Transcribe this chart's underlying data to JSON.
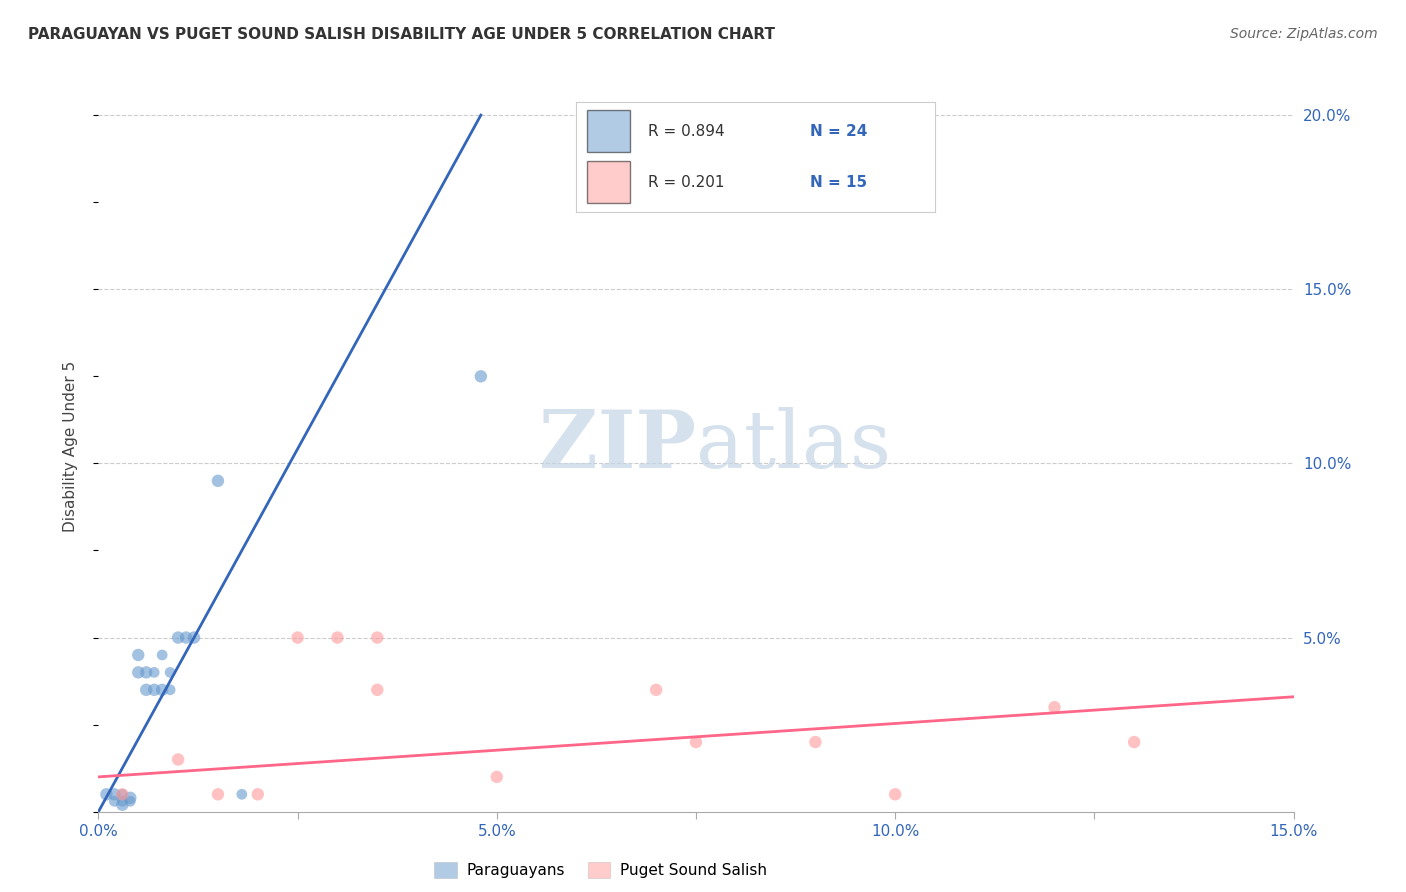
{
  "title": "PARAGUAYAN VS PUGET SOUND SALISH DISABILITY AGE UNDER 5 CORRELATION CHART",
  "source": "Source: ZipAtlas.com",
  "ylabel": "Disability Age Under 5",
  "xlim": [
    0.0,
    0.15
  ],
  "ylim": [
    0.0,
    0.21
  ],
  "xtick_positions": [
    0.0,
    0.025,
    0.05,
    0.075,
    0.1,
    0.125,
    0.15
  ],
  "xtick_labels": [
    "0.0%",
    "",
    "5.0%",
    "",
    "10.0%",
    "",
    "15.0%"
  ],
  "ytick_positions": [
    0.0,
    0.025,
    0.05,
    0.075,
    0.1,
    0.125,
    0.15,
    0.175,
    0.2
  ],
  "ytick_right_positions": [
    0.05,
    0.1,
    0.15,
    0.2
  ],
  "ytick_right_labels": [
    "5.0%",
    "10.0%",
    "15.0%",
    "20.0%"
  ],
  "legend_labels": [
    "Paraguayans",
    "Puget Sound Salish"
  ],
  "legend_r1": "R = 0.894",
  "legend_n1": "N = 24",
  "legend_r2": "R = 0.201",
  "legend_n2": "N = 15",
  "blue_color": "#6699CC",
  "pink_color": "#FF9999",
  "blue_line_color": "#3366BB",
  "pink_line_color": "#FF6688",
  "text_color": "#3366BB",
  "watermark_color": "#C5D5E8",
  "background_color": "#FFFFFF",
  "grid_color": "#CCCCCC",
  "paraguayan_x": [
    0.001,
    0.002,
    0.002,
    0.003,
    0.003,
    0.003,
    0.004,
    0.004,
    0.005,
    0.005,
    0.006,
    0.006,
    0.007,
    0.007,
    0.008,
    0.008,
    0.009,
    0.009,
    0.01,
    0.011,
    0.012,
    0.015,
    0.018,
    0.048
  ],
  "paraguayan_y": [
    0.005,
    0.005,
    0.003,
    0.005,
    0.003,
    0.002,
    0.004,
    0.003,
    0.04,
    0.045,
    0.035,
    0.04,
    0.035,
    0.04,
    0.045,
    0.035,
    0.04,
    0.035,
    0.05,
    0.05,
    0.05,
    0.095,
    0.005,
    0.125
  ],
  "paraguayan_sizes": [
    80,
    80,
    60,
    60,
    60,
    80,
    80,
    60,
    80,
    80,
    80,
    80,
    80,
    60,
    60,
    80,
    60,
    60,
    80,
    80,
    80,
    80,
    60,
    80
  ],
  "puget_x": [
    0.003,
    0.01,
    0.015,
    0.02,
    0.025,
    0.03,
    0.035,
    0.035,
    0.05,
    0.07,
    0.075,
    0.09,
    0.1,
    0.12,
    0.13
  ],
  "puget_y": [
    0.005,
    0.015,
    0.005,
    0.005,
    0.05,
    0.05,
    0.035,
    0.05,
    0.01,
    0.035,
    0.02,
    0.02,
    0.005,
    0.03,
    0.02
  ],
  "puget_sizes": [
    80,
    80,
    80,
    80,
    80,
    80,
    80,
    80,
    80,
    80,
    80,
    80,
    80,
    80,
    80
  ],
  "blue_trend_x": [
    0.0,
    0.048
  ],
  "blue_trend_y": [
    0.0,
    0.2
  ],
  "pink_trend_x": [
    0.0,
    0.15
  ],
  "pink_trend_y": [
    0.01,
    0.033
  ]
}
